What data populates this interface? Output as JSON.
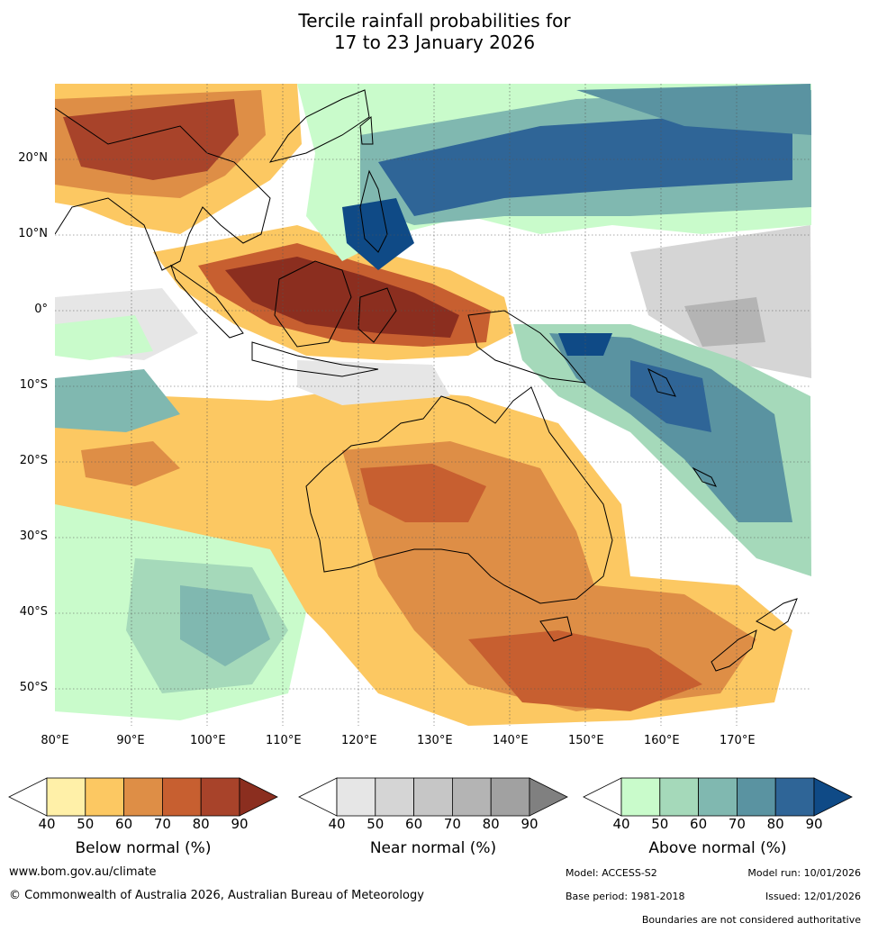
{
  "title_line1": "Tercile rainfall probabilities for",
  "title_line2": "17 to 23 January 2026",
  "lon_labels": [
    "80°E",
    "90°E",
    "100°E",
    "110°E",
    "120°E",
    "130°E",
    "140°E",
    "150°E",
    "160°E",
    "170°E"
  ],
  "lat_labels": [
    "20°N",
    "10°N",
    "0°",
    "10°S",
    "20°S",
    "30°S",
    "40°S",
    "50°S"
  ],
  "colorbars": [
    {
      "title": "Below normal (%)",
      "ticks": [
        "40",
        "50",
        "60",
        "70",
        "80",
        "90"
      ],
      "colors": [
        "#fff0a8",
        "#fcc862",
        "#de8e46",
        "#c75f30",
        "#a8432a",
        "#8b2e1f"
      ]
    },
    {
      "title": "Near normal (%)",
      "ticks": [
        "40",
        "50",
        "60",
        "70",
        "80",
        "90"
      ],
      "colors": [
        "#e6e6e6",
        "#d5d5d5",
        "#c6c6c6",
        "#b4b4b4",
        "#a1a1a1",
        "#808080"
      ]
    },
    {
      "title": "Above normal (%)",
      "ticks": [
        "40",
        "50",
        "60",
        "70",
        "80",
        "90"
      ],
      "colors": [
        "#c9fbcb",
        "#a5d9ba",
        "#80b8b0",
        "#5a93a1",
        "#2f6597",
        "#0f4a86"
      ]
    }
  ],
  "footer": {
    "website": "www.bom.gov.au/climate",
    "copyright": "© Commonwealth of Australia 2026, Australian Bureau of Meteorology",
    "model": "Model: ACCESS-S2",
    "model_run": "Model run: 10/01/2026",
    "base_period": "Base period: 1981-2018",
    "issued": "Issued: 12/01/2026",
    "disclaimer": "Boundaries are not considered authoritative"
  }
}
